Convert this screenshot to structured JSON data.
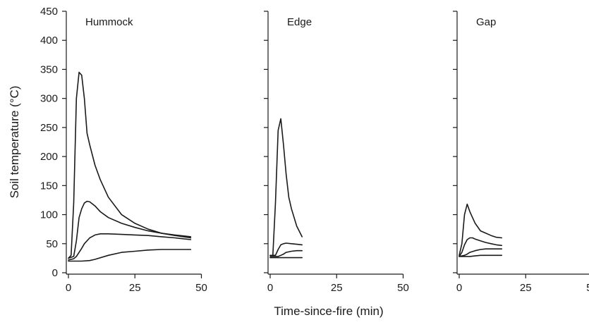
{
  "chart_data": {
    "type": "line",
    "ylabel": "Soil temperature (°C)",
    "xlabel": "Time-since-fire (min)",
    "ylim": [
      0,
      450
    ],
    "yticks": [
      0,
      50,
      100,
      150,
      200,
      250,
      300,
      350,
      400,
      450
    ],
    "xlim": [
      0,
      50
    ],
    "xticks": [
      0,
      25,
      50
    ],
    "grid": false,
    "panels": [
      {
        "title": "Hummock",
        "series": [
          {
            "x": [
              0,
              1,
              2,
              3,
              4,
              5,
              6,
              7,
              8,
              10,
              12,
              15,
              20,
              25,
              30,
              35,
              40,
              46
            ],
            "y": [
              25,
              30,
              120,
              300,
              345,
              340,
              300,
              240,
              220,
              185,
              160,
              130,
              100,
              85,
              75,
              68,
              64,
              60
            ]
          },
          {
            "x": [
              0,
              2,
              3,
              4,
              5,
              6,
              7,
              8,
              10,
              12,
              15,
              20,
              25,
              30,
              35,
              40,
              46
            ],
            "y": [
              25,
              28,
              55,
              95,
              110,
              120,
              123,
              122,
              115,
              105,
              95,
              85,
              78,
              72,
              68,
              65,
              62
            ]
          },
          {
            "x": [
              0,
              2,
              3,
              4,
              5,
              6,
              8,
              10,
              12,
              15,
              20,
              25,
              30,
              35,
              40,
              46
            ],
            "y": [
              22,
              24,
              28,
              35,
              42,
              50,
              60,
              65,
              67,
              67,
              66,
              65,
              64,
              62,
              60,
              57
            ]
          },
          {
            "x": [
              0,
              3,
              5,
              8,
              10,
              15,
              20,
              25,
              30,
              35,
              40,
              46
            ],
            "y": [
              20,
              20,
              20,
              21,
              23,
              30,
              35,
              37,
              39,
              40,
              40,
              40
            ]
          }
        ]
      },
      {
        "title": "Edge",
        "series": [
          {
            "x": [
              0,
              1,
              2,
              3,
              4,
              5,
              6,
              7,
              8,
              10,
              12
            ],
            "y": [
              30,
              30,
              120,
              245,
              265,
              220,
              170,
              130,
              110,
              80,
              62
            ]
          },
          {
            "x": [
              0,
              2,
              3,
              4,
              5,
              6,
              8,
              10,
              12
            ],
            "y": [
              30,
              30,
              40,
              48,
              50,
              51,
              50,
              49,
              48
            ]
          },
          {
            "x": [
              0,
              3,
              4,
              5,
              6,
              8,
              10,
              12
            ],
            "y": [
              28,
              28,
              30,
              32,
              35,
              37,
              38,
              38
            ]
          },
          {
            "x": [
              0,
              4,
              8,
              12
            ],
            "y": [
              26,
              26,
              26,
              26
            ]
          }
        ]
      },
      {
        "title": "Gap",
        "series": [
          {
            "x": [
              0,
              1,
              2,
              3,
              4,
              6,
              8,
              10,
              12,
              14,
              16
            ],
            "y": [
              30,
              50,
              100,
              118,
              105,
              85,
              72,
              68,
              64,
              61,
              60
            ]
          },
          {
            "x": [
              0,
              1,
              2,
              3,
              4,
              5,
              6,
              8,
              10,
              12,
              14,
              16
            ],
            "y": [
              28,
              35,
              48,
              57,
              60,
              60,
              58,
              55,
              52,
              50,
              48,
              47
            ]
          },
          {
            "x": [
              0,
              2,
              3,
              4,
              6,
              8,
              10,
              12,
              14,
              16
            ],
            "y": [
              28,
              30,
              32,
              35,
              38,
              40,
              41,
              41,
              41,
              41
            ]
          },
          {
            "x": [
              0,
              4,
              6,
              8,
              10,
              12,
              14,
              16
            ],
            "y": [
              28,
              28,
              29,
              30,
              30,
              30,
              30,
              30
            ]
          }
        ]
      }
    ]
  }
}
